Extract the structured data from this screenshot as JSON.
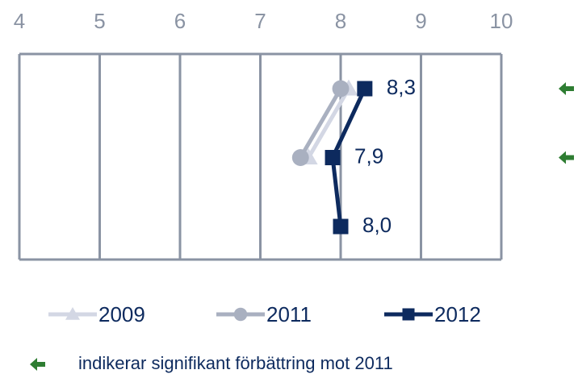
{
  "chart_data": {
    "type": "line",
    "orientation": "horizontal",
    "categories": [
      null,
      null,
      null
    ],
    "series": [
      {
        "name": "2009",
        "color": "#d3d7e4",
        "marker": "triangle",
        "values": [
          8.1,
          7.6,
          null
        ]
      },
      {
        "name": "2011",
        "color": "#a9b0c0",
        "marker": "circle",
        "values": [
          8.0,
          7.5,
          null
        ]
      },
      {
        "name": "2012",
        "color": "#0d2a5e",
        "marker": "square",
        "values": [
          8.3,
          7.9,
          8.0
        ],
        "value_labels": [
          "8,3",
          "7,9",
          "8,0"
        ]
      }
    ],
    "xlim": [
      4,
      10
    ],
    "xticks": [
      4,
      5,
      6,
      7,
      8,
      9,
      10
    ],
    "grid": true,
    "significant_improvement": [
      true,
      true,
      false
    ],
    "significance_color": "#2e7d32",
    "footnote": "indikerar signifikant förbättring mot 2011"
  }
}
